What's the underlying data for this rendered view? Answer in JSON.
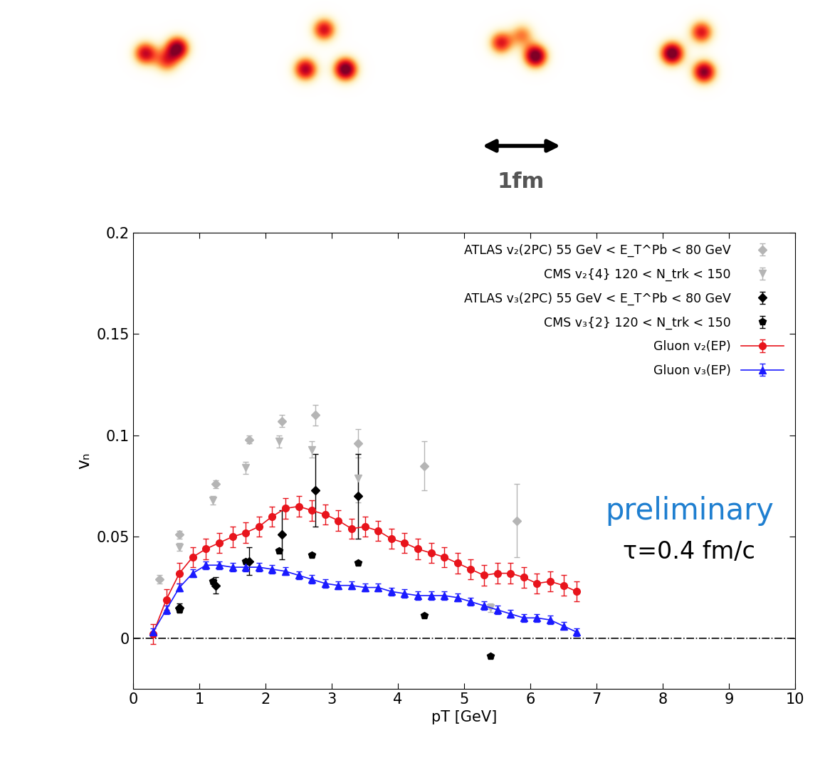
{
  "chart_data": {
    "type": "scatter",
    "x_label": "pT [GeV]",
    "y_label": "vₙ",
    "xlim": [
      0,
      10
    ],
    "xticks": [
      0,
      1,
      2,
      3,
      4,
      5,
      6,
      7,
      8,
      9,
      10
    ],
    "ylim": [
      -0.025,
      0.2
    ],
    "yticks": [
      0,
      0.05,
      0.1,
      0.15,
      0.2
    ],
    "baseline": 0,
    "legend": "upper right",
    "annotations": [
      {
        "text": "preliminary",
        "color": "#1f7fd0"
      },
      {
        "text": "τ=0.4 fm/c",
        "color": "#000000"
      }
    ],
    "scale_bar": "1fm",
    "series": [
      {
        "name": "ATLAS v₂(2PC) 55 GeV < E_T^Pb < 80 GeV",
        "color": "#b5b5b5",
        "marker": "diamond",
        "line_style": "none",
        "x": [
          0.4,
          0.7,
          1.25,
          1.75,
          2.25,
          2.75,
          3.4,
          4.4,
          5.8
        ],
        "values": [
          0.029,
          0.051,
          0.076,
          0.098,
          0.107,
          0.11,
          0.096,
          0.085,
          0.058
        ],
        "errors": [
          0.002,
          0.002,
          0.002,
          0.002,
          0.003,
          0.005,
          0.007,
          0.012,
          0.018
        ]
      },
      {
        "name": "CMS v₂{4} 120 < N_trk < 150",
        "color": "#b5b5b5",
        "marker": "triangle_down",
        "line_style": "none",
        "x": [
          0.7,
          1.2,
          1.7,
          2.2,
          2.7,
          3.4,
          5.4
        ],
        "values": [
          0.045,
          0.068,
          0.084,
          0.097,
          0.093,
          0.079,
          0.015
        ],
        "errors": [
          0.002,
          0.002,
          0.003,
          0.003,
          0.004,
          0.012,
          0.002
        ]
      },
      {
        "name": "ATLAS v₃(2PC) 55 GeV < E_T^Pb < 80 GeV",
        "color": "#000000",
        "marker": "diamond",
        "line_style": "none",
        "x": [
          0.7,
          1.25,
          1.75,
          2.25,
          2.75,
          3.4
        ],
        "values": [
          0.015,
          0.026,
          0.038,
          0.051,
          0.073,
          0.07
        ],
        "errors": [
          0.002,
          0.004,
          0.007,
          0.012,
          0.018,
          0.021
        ]
      },
      {
        "name": "CMS v₃{2} 120 < N_trk < 150",
        "color": "#000000",
        "marker": "pentagon",
        "line_style": "none",
        "x": [
          0.7,
          1.2,
          1.7,
          2.2,
          2.7,
          3.4,
          4.4,
          5.4
        ],
        "values": [
          0.014,
          0.028,
          0.038,
          0.043,
          0.041,
          0.037,
          0.011,
          -0.009
        ],
        "errors": [
          0.001,
          0.001,
          0.001,
          0.001,
          0.001,
          0.001,
          0.001,
          0.001
        ]
      },
      {
        "name": "Gluon v₂(EP)",
        "color": "#e8141c",
        "marker": "circle",
        "line_style": "solid",
        "x": [
          0.3,
          0.5,
          0.7,
          0.9,
          1.1,
          1.3,
          1.5,
          1.7,
          1.9,
          2.1,
          2.3,
          2.5,
          2.7,
          2.9,
          3.1,
          3.3,
          3.5,
          3.7,
          3.9,
          4.1,
          4.3,
          4.5,
          4.7,
          4.9,
          5.1,
          5.3,
          5.5,
          5.7,
          5.9,
          6.1,
          6.3,
          6.5,
          6.7
        ],
        "values": [
          0.002,
          0.019,
          0.032,
          0.04,
          0.044,
          0.047,
          0.05,
          0.052,
          0.055,
          0.06,
          0.064,
          0.065,
          0.063,
          0.061,
          0.058,
          0.054,
          0.055,
          0.053,
          0.049,
          0.047,
          0.044,
          0.042,
          0.04,
          0.037,
          0.034,
          0.031,
          0.032,
          0.032,
          0.03,
          0.027,
          0.028,
          0.026,
          0.023
        ],
        "errors": [
          0.005,
          0.005,
          0.005,
          0.005,
          0.005,
          0.005,
          0.005,
          0.005,
          0.005,
          0.005,
          0.005,
          0.005,
          0.005,
          0.005,
          0.005,
          0.005,
          0.005,
          0.005,
          0.005,
          0.005,
          0.005,
          0.005,
          0.005,
          0.005,
          0.005,
          0.005,
          0.005,
          0.005,
          0.005,
          0.005,
          0.005,
          0.005,
          0.005
        ]
      },
      {
        "name": "Gluon v₃(EP)",
        "color": "#1a1aff",
        "marker": "triangle_up",
        "line_style": "solid",
        "x": [
          0.3,
          0.5,
          0.7,
          0.9,
          1.1,
          1.3,
          1.5,
          1.7,
          1.9,
          2.1,
          2.3,
          2.5,
          2.7,
          2.9,
          3.1,
          3.3,
          3.5,
          3.7,
          3.9,
          4.1,
          4.3,
          4.5,
          4.7,
          4.9,
          5.1,
          5.3,
          5.5,
          5.7,
          5.9,
          6.1,
          6.3,
          6.5,
          6.7
        ],
        "values": [
          0.003,
          0.014,
          0.025,
          0.032,
          0.036,
          0.036,
          0.035,
          0.035,
          0.035,
          0.034,
          0.033,
          0.031,
          0.029,
          0.027,
          0.026,
          0.026,
          0.025,
          0.025,
          0.023,
          0.022,
          0.021,
          0.021,
          0.021,
          0.02,
          0.018,
          0.016,
          0.014,
          0.012,
          0.01,
          0.01,
          0.009,
          0.006,
          0.003
        ],
        "errors": [
          0.002,
          0.002,
          0.002,
          0.002,
          0.002,
          0.002,
          0.002,
          0.002,
          0.002,
          0.002,
          0.002,
          0.002,
          0.002,
          0.002,
          0.002,
          0.002,
          0.002,
          0.002,
          0.002,
          0.002,
          0.002,
          0.002,
          0.002,
          0.002,
          0.002,
          0.002,
          0.002,
          0.002,
          0.002,
          0.002,
          0.002,
          0.002,
          0.002
        ]
      }
    ]
  }
}
